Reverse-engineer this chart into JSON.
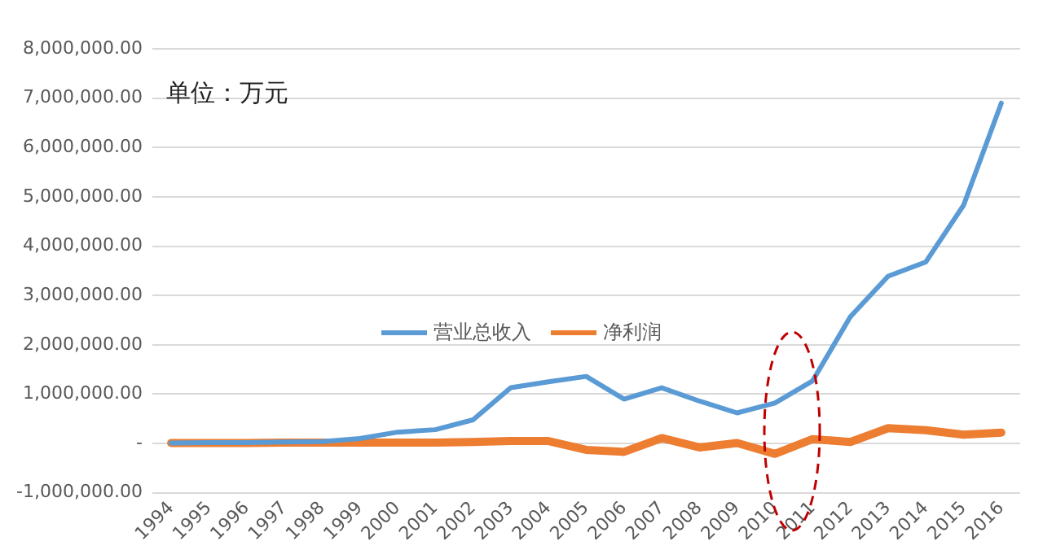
{
  "chart_data": {
    "type": "line",
    "categories": [
      "1994",
      "1995",
      "1996",
      "1997",
      "1998",
      "1999",
      "2000",
      "2001",
      "2002",
      "2003",
      "2004",
      "2005",
      "2006",
      "2007",
      "2008",
      "2009",
      "2010",
      "2011",
      "2012",
      "2013",
      "2014",
      "2015",
      "2016"
    ],
    "series": [
      {
        "name": "营业总收入",
        "color": "#5b9bd5",
        "values": [
          10000,
          20000,
          20000,
          30000,
          40000,
          100000,
          230000,
          280000,
          480000,
          1130000,
          1250000,
          1360000,
          900000,
          1130000,
          860000,
          620000,
          820000,
          1270000,
          2570000,
          3390000,
          3680000,
          4830000,
          6900000
        ]
      },
      {
        "name": "净利润",
        "color": "#ed7d31",
        "values": [
          10000,
          10000,
          10000,
          20000,
          20000,
          20000,
          20000,
          20000,
          30000,
          50000,
          50000,
          -130000,
          -170000,
          110000,
          -80000,
          10000,
          -210000,
          90000,
          30000,
          310000,
          270000,
          180000,
          220000
        ]
      }
    ],
    "ylim": [
      -1000000,
      8000000
    ],
    "yticks": [
      {
        "value": -1000000,
        "label": "-1,000,000.00"
      },
      {
        "value": 0,
        "label": "-"
      },
      {
        "value": 1000000,
        "label": "1,000,000.00"
      },
      {
        "value": 2000000,
        "label": "2,000,000.00"
      },
      {
        "value": 3000000,
        "label": "3,000,000.00"
      },
      {
        "value": 4000000,
        "label": "4,000,000.00"
      },
      {
        "value": 5000000,
        "label": "5,000,000.00"
      },
      {
        "value": 6000000,
        "label": "6,000,000.00"
      },
      {
        "value": 7000000,
        "label": "7,000,000.00"
      },
      {
        "value": 8000000,
        "label": "8,000,000.00"
      }
    ],
    "grid": "y",
    "legend": "center",
    "marker": "none",
    "line_style": "solid",
    "annotations": [
      "单位：万元"
    ]
  }
}
